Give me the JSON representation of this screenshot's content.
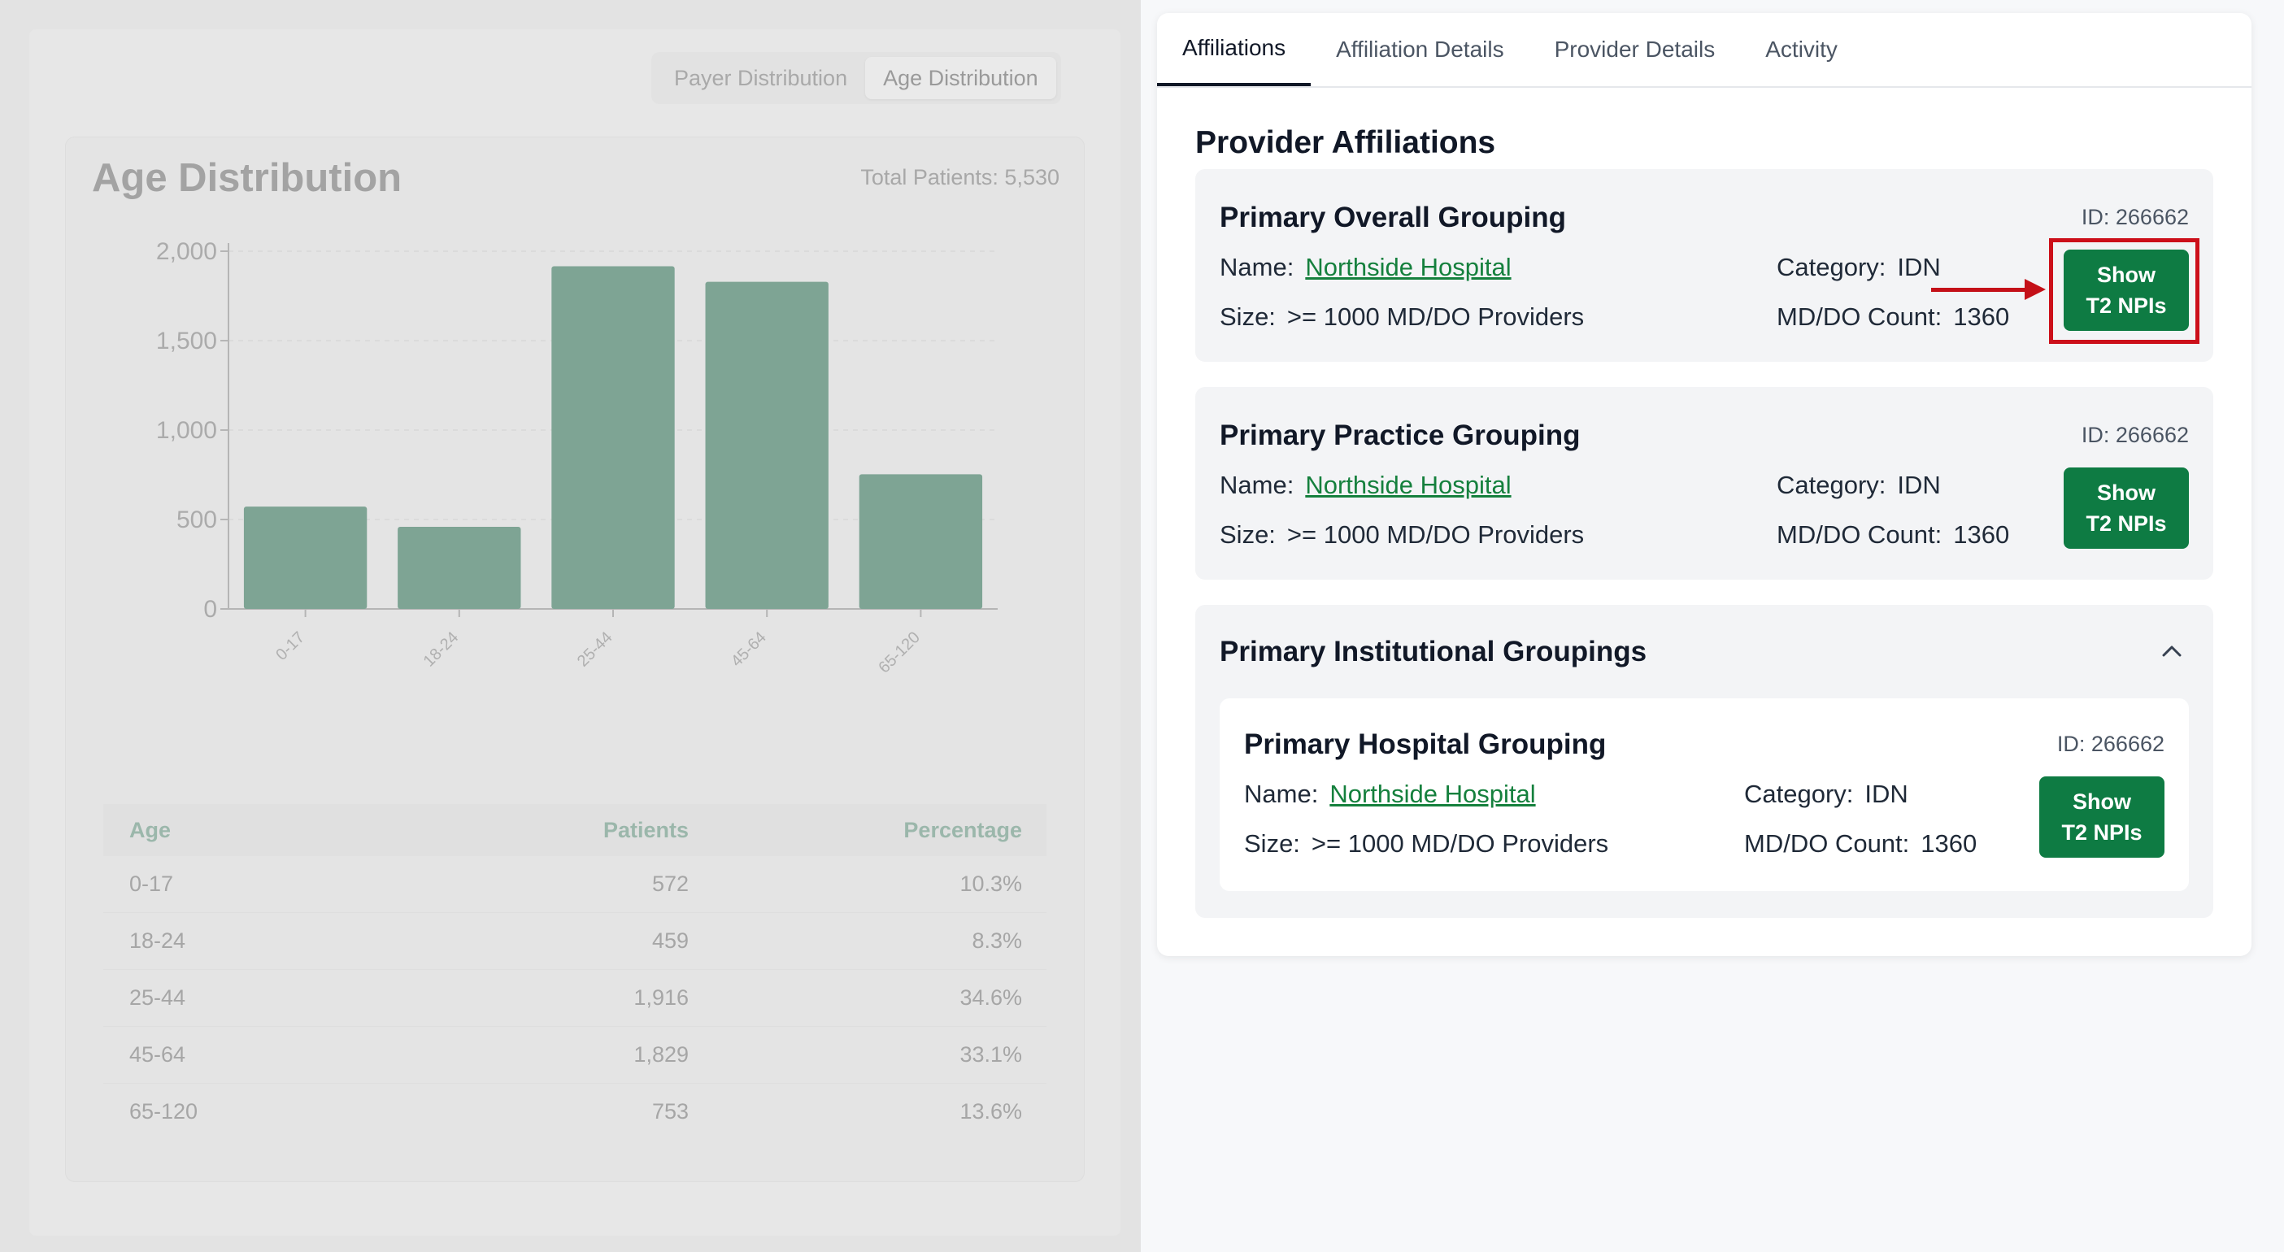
{
  "left": {
    "tabs": [
      "Payer Distribution",
      "Age Distribution"
    ],
    "active_tab": "Age Distribution",
    "title": "Age Distribution",
    "total_patients": "Total Patients: 5,530",
    "table": {
      "headers": [
        "Age",
        "Patients",
        "Percentage"
      ],
      "rows": [
        [
          "0-17",
          "572",
          "10.3%"
        ],
        [
          "18-24",
          "459",
          "8.3%"
        ],
        [
          "25-44",
          "1,916",
          "34.6%"
        ],
        [
          "45-64",
          "1,829",
          "33.1%"
        ],
        [
          "65-120",
          "753",
          "13.6%"
        ]
      ]
    }
  },
  "chart_data": {
    "type": "bar",
    "categories": [
      "0-17",
      "18-24",
      "25-44",
      "45-64",
      "65-120"
    ],
    "values": [
      572,
      459,
      1916,
      1829,
      753
    ],
    "yticks": [
      "0",
      "500",
      "1,000",
      "1,500",
      "2,000"
    ],
    "ylim": [
      0,
      2000
    ],
    "grid": true,
    "bar_color": "#7ea494"
  },
  "right": {
    "tabs": [
      "Affiliations",
      "Affiliation Details",
      "Provider Details",
      "Activity"
    ],
    "active_tab": "Affiliations",
    "heading": "Provider Affiliations",
    "labels": {
      "name": "Name:",
      "size": "Size:",
      "category": "Category:",
      "count": "MD/DO Count:"
    },
    "button_label_line1": "Show",
    "button_label_line2": "T2 NPIs",
    "groups": {
      "overall": {
        "title": "Primary Overall Grouping",
        "id": "ID: 266662",
        "name": "Northside Hospital",
        "size": ">= 1000 MD/DO Providers",
        "category": "IDN",
        "count": "1360"
      },
      "practice": {
        "title": "Primary Practice Grouping",
        "id": "ID: 266662",
        "name": "Northside Hospital",
        "size": ">= 1000 MD/DO Providers",
        "category": "IDN",
        "count": "1360"
      },
      "institutional": {
        "title": "Primary Institutional Groupings",
        "hospital": {
          "title": "Primary Hospital Grouping",
          "id": "ID: 266662",
          "name": "Northside Hospital",
          "size": ">= 1000 MD/DO Providers",
          "category": "IDN",
          "count": "1360"
        }
      }
    }
  },
  "colors": {
    "button_green": "#0e7b43",
    "link_green": "#15803d",
    "highlight_red": "#cc0f1a"
  }
}
